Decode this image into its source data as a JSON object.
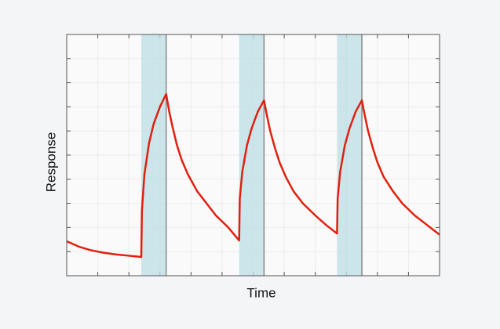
{
  "chart_data": {
    "type": "line",
    "x_label": "Time",
    "y_label": "Response",
    "x": [
      0,
      4,
      8,
      12,
      16,
      20,
      24,
      24.2,
      25,
      26.5,
      28,
      30,
      32,
      33,
      34,
      35.5,
      37,
      39,
      42,
      45,
      48,
      52,
      55.5,
      55.7,
      56.5,
      58,
      59.5,
      61.5,
      63.5,
      64.5,
      65.5,
      67,
      68.5,
      70.5,
      73,
      76,
      80,
      83.5,
      87,
      87.2,
      88,
      89.5,
      91,
      93,
      95,
      96,
      97,
      98.5,
      100,
      102,
      105,
      108,
      112,
      116,
      120
    ],
    "series": [
      {
        "color": "#e0200f",
        "values": [
          1.43,
          1.2,
          1.05,
          0.95,
          0.88,
          0.83,
          0.78,
          2.7,
          4.2,
          5.5,
          6.3,
          7.0,
          7.53,
          6.8,
          6.2,
          5.4,
          4.8,
          4.2,
          3.5,
          3.0,
          2.5,
          2.0,
          1.46,
          3.2,
          4.3,
          5.4,
          6.1,
          6.8,
          7.27,
          6.6,
          6.0,
          5.3,
          4.7,
          4.1,
          3.5,
          3.0,
          2.5,
          2.1,
          1.75,
          3.2,
          4.3,
          5.4,
          6.1,
          6.8,
          7.27,
          6.6,
          6.0,
          5.3,
          4.7,
          4.1,
          3.5,
          3.0,
          2.5,
          2.1,
          1.7
        ]
      }
    ],
    "spans": [
      [
        24,
        32
      ],
      [
        55.5,
        63.5
      ],
      [
        87,
        95
      ]
    ],
    "span_color": "#bcdde5",
    "xlim": [
      0,
      120
    ],
    "xticks": [
      0,
      10,
      20,
      30,
      40,
      50,
      60,
      70,
      80,
      90,
      100,
      110,
      120
    ],
    "ylim": [
      0,
      10
    ],
    "yticks": [
      0,
      1,
      2,
      3,
      4,
      5,
      6,
      7,
      8,
      9,
      10
    ],
    "grid": true
  }
}
